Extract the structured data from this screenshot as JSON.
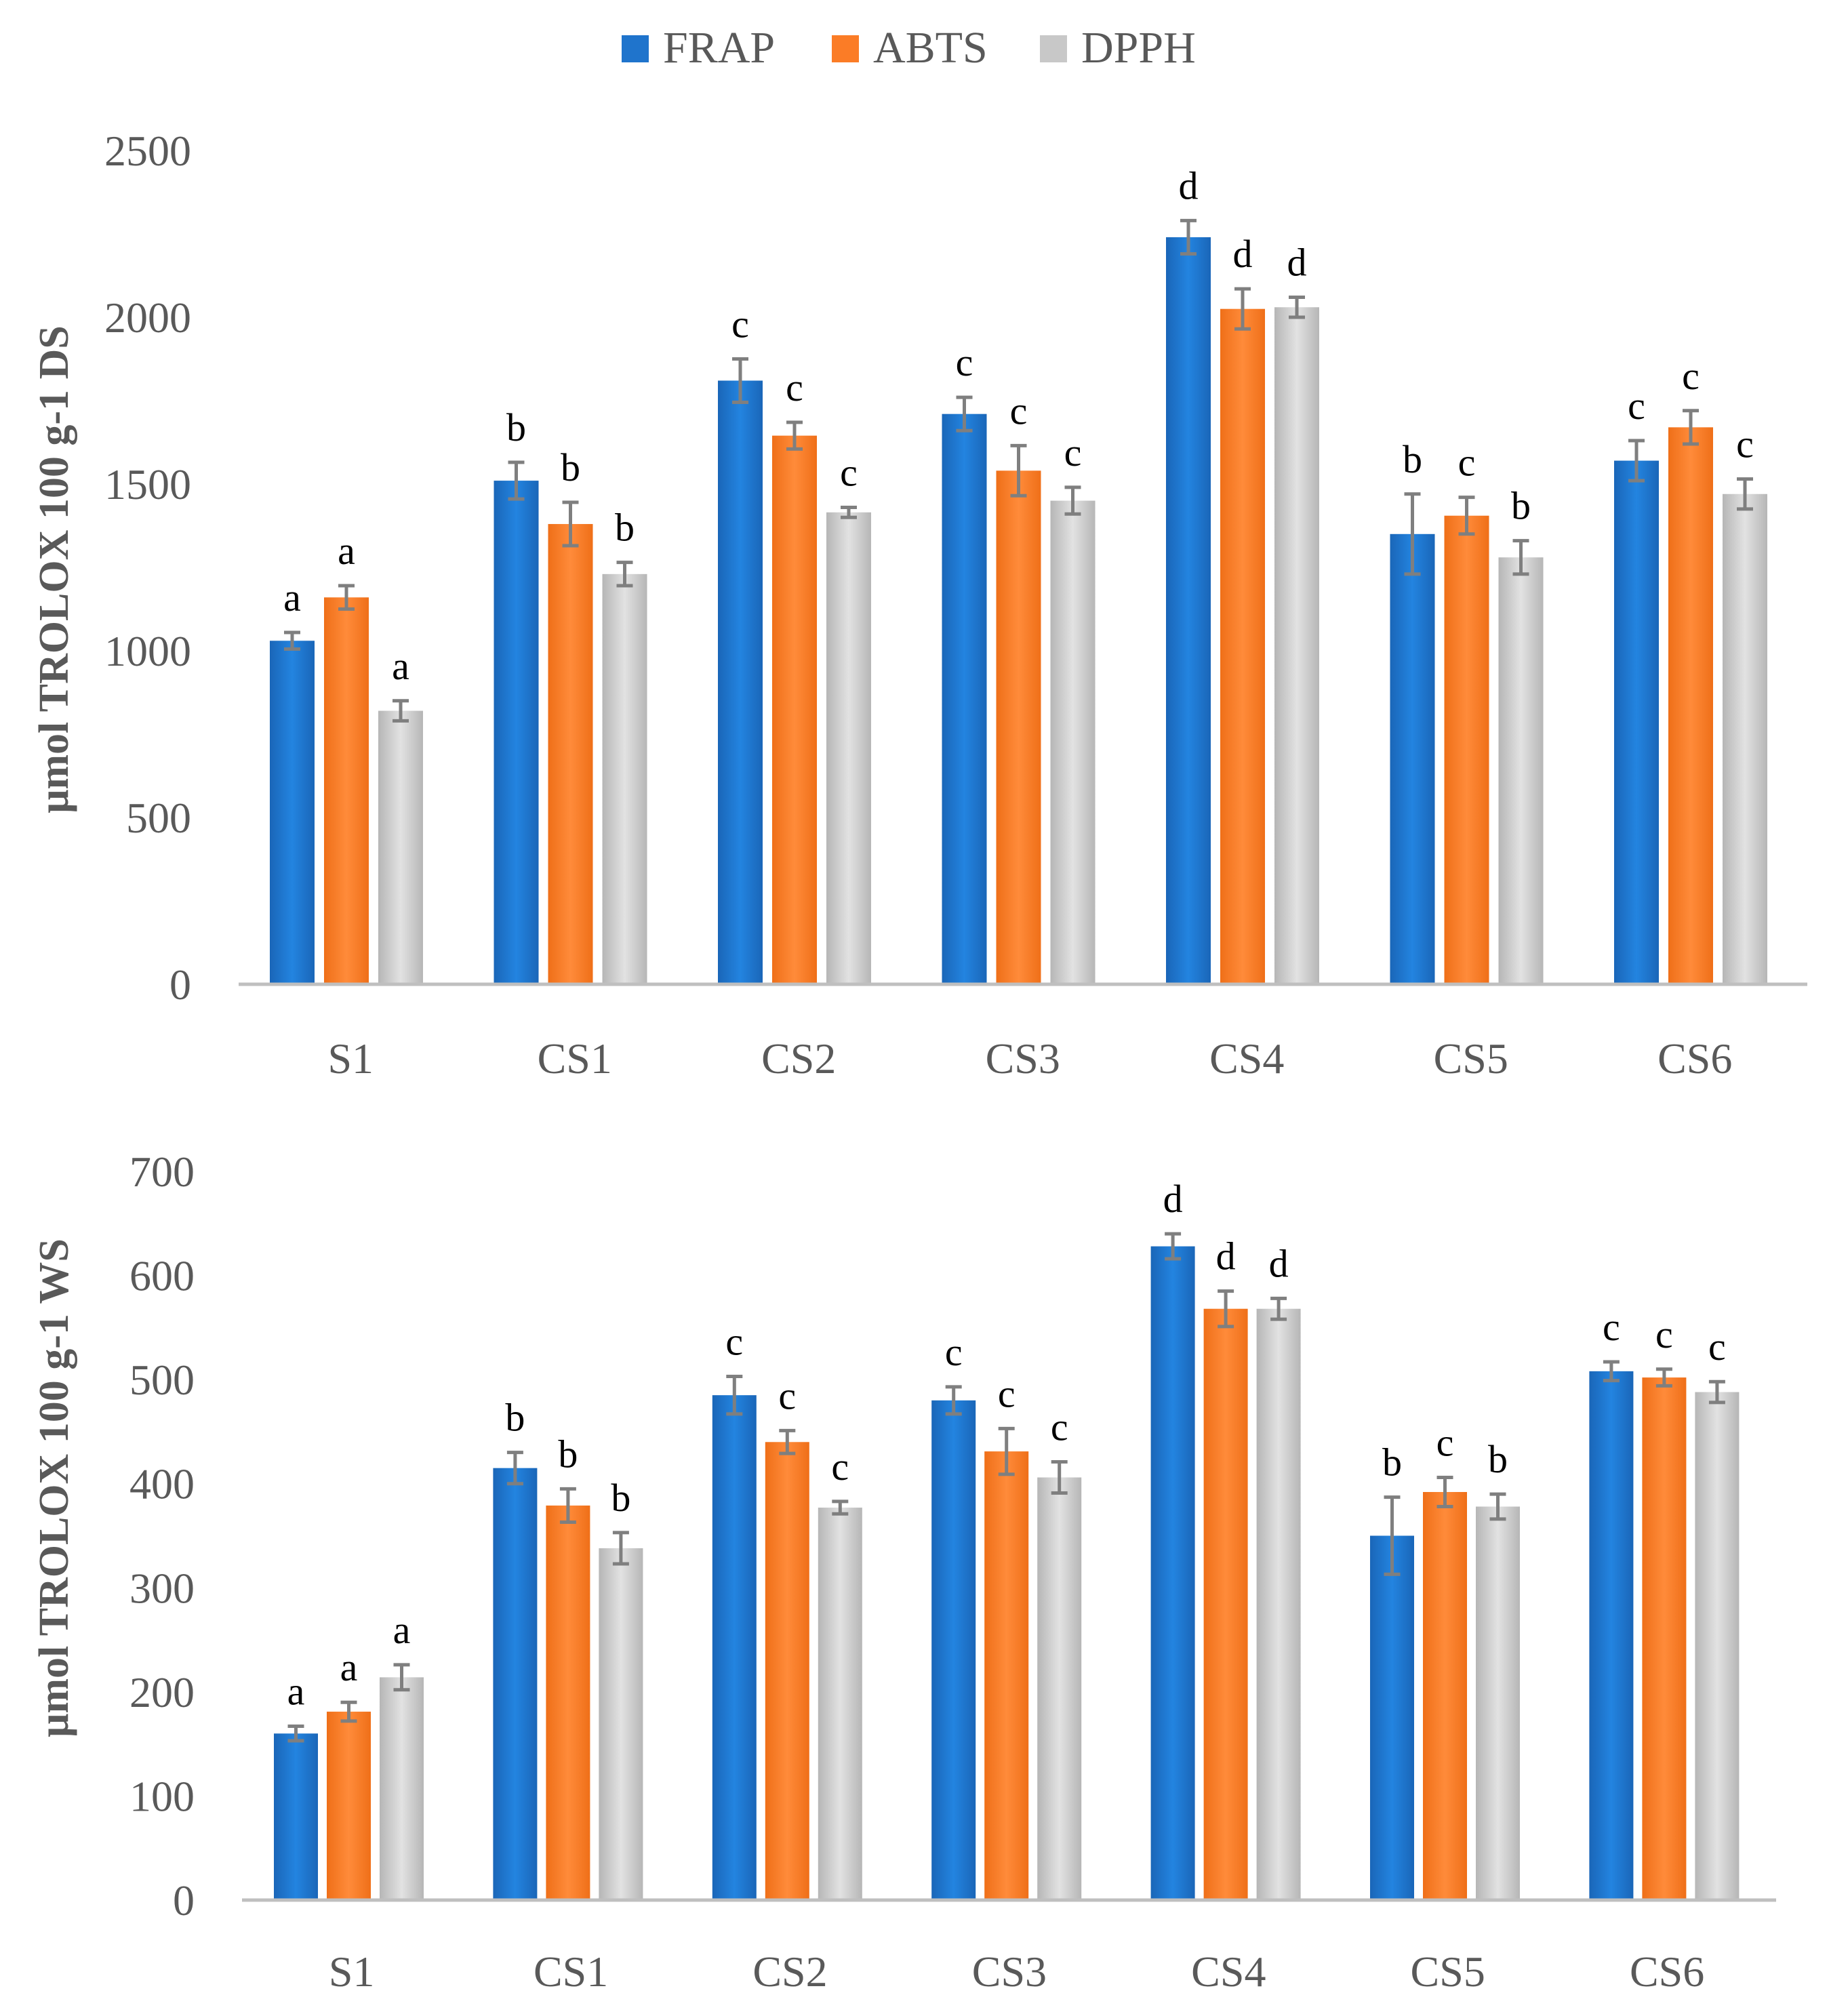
{
  "legend": [
    {
      "name": "FRAP",
      "color": "#1f74cc"
    },
    {
      "name": "ABTS",
      "color": "#fb7c26"
    },
    {
      "name": "DPPH",
      "color": "#c8c8c8"
    }
  ],
  "colors": {
    "axis": "#bfbfbf",
    "text": "#595959",
    "letters": "#000000",
    "errorbar": "#7f7f7f"
  },
  "chart_data": [
    {
      "type": "bar",
      "title": "",
      "xlabel": "",
      "ylabel": "μmol TROLOX 100 g-1 DS",
      "ylim": [
        0,
        2500
      ],
      "yticks": [
        "0",
        "500",
        "1000",
        "1500",
        "2000",
        "2500"
      ],
      "categories": [
        "S1",
        "CS1",
        "CS2",
        "CS3",
        "CS4",
        "CS5",
        "CS6"
      ],
      "series": [
        {
          "name": "FRAP",
          "values": [
            1030,
            1510,
            1810,
            1710,
            2240,
            1350,
            1570
          ],
          "errors": [
            25,
            55,
            65,
            50,
            50,
            120,
            60
          ],
          "letters": [
            "a",
            "b",
            "c",
            "c",
            "d",
            "b",
            "c"
          ]
        },
        {
          "name": "ABTS",
          "values": [
            1160,
            1380,
            1645,
            1540,
            2025,
            1405,
            1670
          ],
          "errors": [
            35,
            65,
            40,
            75,
            60,
            55,
            50
          ],
          "letters": [
            "a",
            "b",
            "c",
            "c",
            "d",
            "c",
            "c"
          ]
        },
        {
          "name": "DPPH",
          "values": [
            820,
            1230,
            1415,
            1450,
            2030,
            1280,
            1470
          ],
          "errors": [
            30,
            35,
            15,
            40,
            30,
            50,
            45
          ],
          "letters": [
            "a",
            "b",
            "c",
            "c",
            "d",
            "b",
            "c"
          ]
        }
      ]
    },
    {
      "type": "bar",
      "title": "",
      "xlabel": "",
      "ylabel": "μmol TROLOX  100 g-1 WS",
      "ylim": [
        0,
        700
      ],
      "yticks": [
        "0",
        "100",
        "200",
        "300",
        "400",
        "500",
        "600",
        "700"
      ],
      "categories": [
        "S1",
        "CS1",
        "CS2",
        "CS3",
        "CS4",
        "CS5",
        "CS6"
      ],
      "series": [
        {
          "name": "FRAP",
          "values": [
            160,
            415,
            485,
            480,
            628,
            350,
            508
          ],
          "errors": [
            7,
            15,
            18,
            13,
            12,
            37,
            9
          ],
          "letters": [
            "a",
            "b",
            "c",
            "c",
            "d",
            "b",
            "c"
          ]
        },
        {
          "name": "ABTS",
          "values": [
            181,
            379,
            440,
            431,
            568,
            392,
            502
          ],
          "errors": [
            9,
            16,
            11,
            22,
            17,
            14,
            8
          ],
          "letters": [
            "a",
            "b",
            "c",
            "c",
            "d",
            "c",
            "c"
          ]
        },
        {
          "name": "DPPH",
          "values": [
            214,
            338,
            377,
            406,
            568,
            378,
            488
          ],
          "errors": [
            12,
            15,
            6,
            15,
            10,
            12,
            10
          ],
          "letters": [
            "a",
            "b",
            "c",
            "c",
            "d",
            "b",
            "c"
          ]
        }
      ]
    }
  ]
}
